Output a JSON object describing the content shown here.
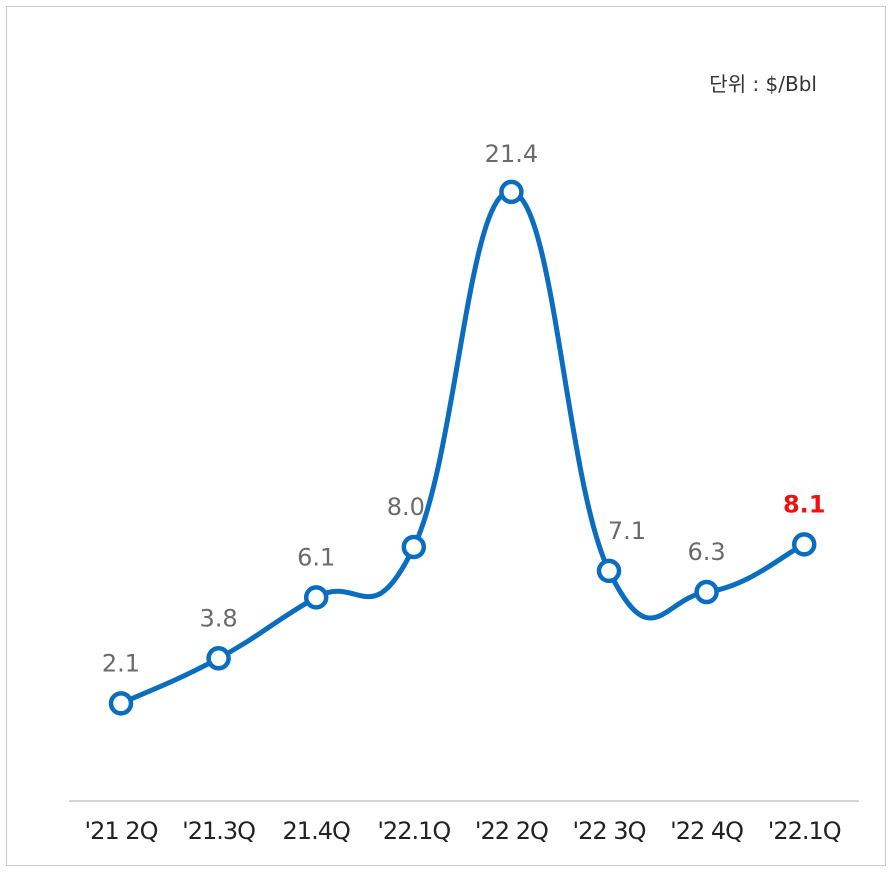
{
  "unit_label": "단위 : $/Bbl",
  "chart_data": {
    "type": "line",
    "categories": [
      "'21 2Q",
      "'21.3Q",
      "21.4Q",
      "'22.1Q",
      "'22 2Q",
      "'22 3Q",
      "'22 4Q",
      "'22.1Q"
    ],
    "values": [
      2.1,
      3.8,
      6.1,
      8.0,
      21.4,
      7.1,
      6.3,
      8.1
    ],
    "data_labels": [
      "2.1",
      "3.8",
      "6.1",
      "8.0",
      "21.4",
      "7.1",
      "6.3",
      "8.1"
    ],
    "highlight_index": 7,
    "smooth": true,
    "grid": false,
    "legend": "none",
    "ylim": [
      0,
      27
    ],
    "colors": {
      "line": "#0a6dbf",
      "marker_fill": "#ffffff",
      "label": "#6b6b6b",
      "highlight_label": "#ee1111",
      "axis": "#c8c8c8",
      "frame": "#c8c8c8"
    }
  }
}
